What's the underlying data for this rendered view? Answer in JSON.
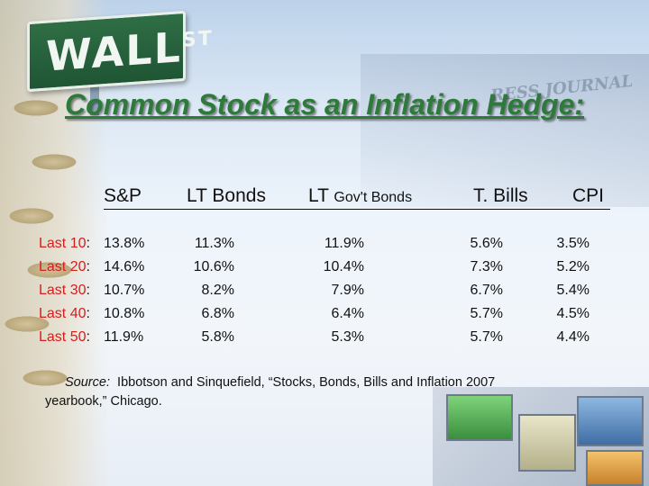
{
  "background": {
    "sign_text": "WALL",
    "sign_sup": "ST",
    "newspaper_text": "RESS JOURNAL"
  },
  "title": "Common Stock as an Inflation Hedge:",
  "headers": {
    "sp": "S&P",
    "lt_bonds": "LT Bonds",
    "lt_gov_prefix": "LT",
    "lt_gov_suffix": "Gov't Bonds",
    "tbills": "T. Bills",
    "cpi": "CPI"
  },
  "rows": [
    {
      "label": "Last 10",
      "sp": "13.8%",
      "lt_bonds": "11.3%",
      "lt_gov": "11.9%",
      "tbills": "5.6%",
      "cpi": "3.5%"
    },
    {
      "label": "Last 20",
      "sp": "14.6%",
      "lt_bonds": "10.6%",
      "lt_gov": "10.4%",
      "tbills": "7.3%",
      "cpi": "5.2%"
    },
    {
      "label": "Last 30",
      "sp": "10.7%",
      "lt_bonds": "8.2%",
      "lt_gov": "7.9%",
      "tbills": "6.7%",
      "cpi": "5.4%"
    },
    {
      "label": "Last 40",
      "sp": "10.8%",
      "lt_bonds": "6.8%",
      "lt_gov": "6.4%",
      "tbills": "5.7%",
      "cpi": "4.5%"
    },
    {
      "label": "Last 50",
      "sp": "11.9%",
      "lt_bonds": "5.8%",
      "lt_gov": "5.3%",
      "tbills": "5.7%",
      "cpi": "4.4%"
    }
  ],
  "source": {
    "label": "Source:",
    "line1": "Ibbotson and Sinquefield, “Stocks, Bonds, Bills and Inflation 2007",
    "line2": "yearbook,” Chicago."
  },
  "colors": {
    "title": "#2e7a3a",
    "row_label": "#d41e1e"
  }
}
